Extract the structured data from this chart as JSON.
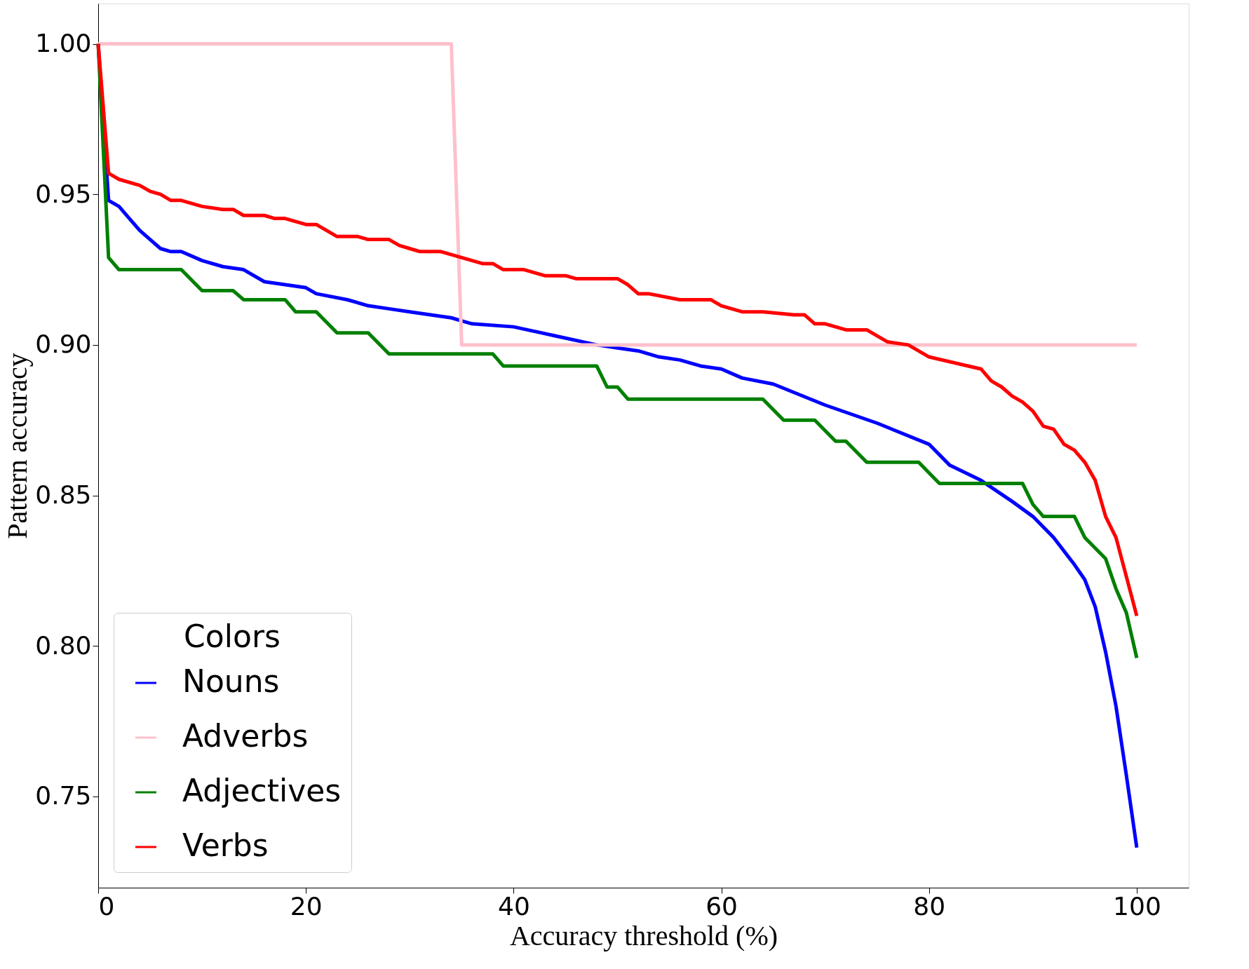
{
  "chart_data": {
    "type": "line",
    "xlabel": "Accuracy threshold (%)",
    "ylabel": "Pattern accuracy",
    "legend_title": "Colors",
    "legend": "bottom left",
    "grid": false,
    "marker": "none",
    "line_style": "solid",
    "xlim": [
      0,
      105
    ],
    "ylim": [
      0.7197,
      1.0134
    ],
    "xticks": [
      0,
      20,
      40,
      60,
      80,
      100
    ],
    "yticks": [
      0.75,
      {
        "value": 0.8,
        "label": "0.80"
      },
      0.85,
      {
        "value": 0.9,
        "label": "0.90"
      },
      0.95,
      {
        "value": 1.0,
        "label": "1.00"
      }
    ],
    "series": [
      {
        "name": "Nouns",
        "color": "#0000ff",
        "x": [
          0,
          1,
          2,
          3,
          4,
          5,
          6,
          7,
          8,
          10,
          12,
          14,
          16,
          18,
          20,
          21,
          24,
          26,
          28,
          30,
          32,
          34,
          35,
          36,
          40,
          44,
          48,
          50,
          52,
          54,
          56,
          58,
          60,
          62,
          65,
          70,
          75,
          80,
          82,
          85,
          88,
          90,
          92,
          94,
          95,
          96,
          97,
          98,
          99,
          100
        ],
        "values": [
          1.0,
          0.948,
          0.946,
          0.942,
          0.938,
          0.935,
          0.932,
          0.931,
          0.931,
          0.928,
          0.926,
          0.925,
          0.921,
          0.92,
          0.919,
          0.917,
          0.915,
          0.913,
          0.912,
          0.911,
          0.91,
          0.909,
          0.908,
          0.907,
          0.906,
          0.903,
          0.9,
          0.899,
          0.898,
          0.896,
          0.895,
          0.893,
          0.892,
          0.889,
          0.887,
          0.88,
          0.874,
          0.867,
          0.86,
          0.855,
          0.848,
          0.843,
          0.836,
          0.827,
          0.822,
          0.813,
          0.798,
          0.78,
          0.757,
          0.733
        ]
      },
      {
        "name": "Adverbs",
        "color": "#ffc0cb",
        "x": [
          0,
          34,
          35,
          100
        ],
        "values": [
          1.0,
          1.0,
          0.9,
          0.9
        ]
      },
      {
        "name": "Adjectives",
        "color": "#008000",
        "x": [
          0,
          1,
          2,
          8,
          10,
          13,
          14,
          18,
          19,
          21,
          23,
          26,
          28,
          38,
          39,
          48,
          49,
          50,
          51,
          64,
          66,
          69,
          71,
          72,
          74,
          79,
          81,
          89,
          90,
          91,
          94,
          95,
          97,
          98,
          99,
          100
        ],
        "values": [
          1.0,
          0.929,
          0.925,
          0.925,
          0.918,
          0.918,
          0.915,
          0.915,
          0.911,
          0.911,
          0.904,
          0.904,
          0.897,
          0.897,
          0.893,
          0.893,
          0.886,
          0.886,
          0.882,
          0.882,
          0.875,
          0.875,
          0.868,
          0.868,
          0.861,
          0.861,
          0.854,
          0.854,
          0.847,
          0.843,
          0.843,
          0.836,
          0.829,
          0.819,
          0.811,
          0.796
        ]
      },
      {
        "name": "Verbs",
        "color": "#ff0000",
        "x": [
          0,
          1,
          2,
          4,
          5,
          6,
          7,
          8,
          10,
          12,
          13,
          14,
          16,
          17,
          18,
          20,
          21,
          23,
          25,
          26,
          28,
          29,
          30,
          31,
          33,
          35,
          37,
          38,
          39,
          41,
          42,
          43,
          45,
          46,
          50,
          51,
          52,
          53,
          56,
          59,
          60,
          62,
          64,
          67,
          68,
          69,
          70,
          72,
          74,
          76,
          78,
          80,
          85,
          86,
          87,
          88,
          89,
          90,
          91,
          92,
          93,
          94,
          95,
          96,
          97,
          98,
          99,
          100
        ],
        "values": [
          1.0,
          0.957,
          0.955,
          0.953,
          0.951,
          0.95,
          0.948,
          0.948,
          0.946,
          0.945,
          0.945,
          0.943,
          0.943,
          0.942,
          0.942,
          0.94,
          0.94,
          0.936,
          0.936,
          0.935,
          0.935,
          0.933,
          0.932,
          0.931,
          0.931,
          0.929,
          0.927,
          0.927,
          0.925,
          0.925,
          0.924,
          0.923,
          0.923,
          0.922,
          0.922,
          0.92,
          0.917,
          0.917,
          0.915,
          0.915,
          0.913,
          0.911,
          0.911,
          0.91,
          0.91,
          0.907,
          0.907,
          0.905,
          0.905,
          0.901,
          0.9,
          0.896,
          0.892,
          0.888,
          0.886,
          0.883,
          0.881,
          0.878,
          0.873,
          0.872,
          0.867,
          0.865,
          0.861,
          0.855,
          0.843,
          0.836,
          0.823,
          0.81
        ]
      }
    ]
  }
}
